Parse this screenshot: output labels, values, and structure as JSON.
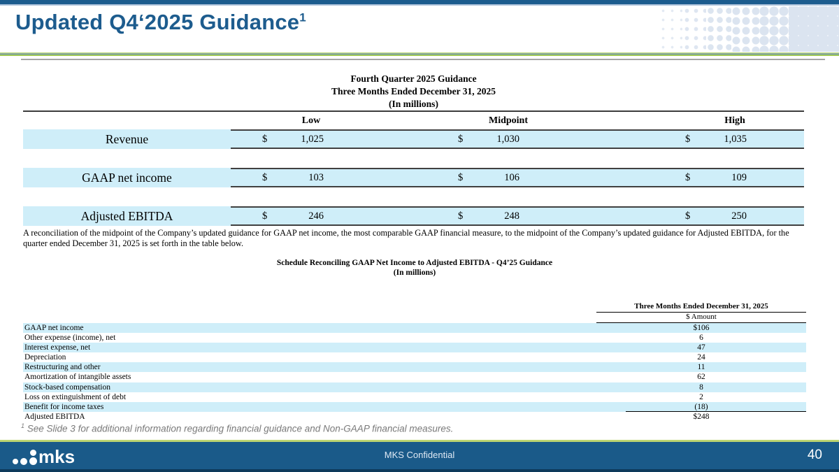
{
  "slide": {
    "title": "Updated Q4‘2025 Guidance",
    "title_superscript": "1",
    "footer_text": "MKS Confidential",
    "page_number": "40",
    "logo_text": "mks"
  },
  "colors": {
    "header_blue": "#1d5c8e",
    "footer_blue": "#1a5a89",
    "row_highlight_blue": "#cfeef9",
    "accent_green": "#a0c852"
  },
  "guidance_table": {
    "title_line1": "Fourth Quarter 2025 Guidance",
    "title_line2": "Three Months Ended December 31, 2025",
    "title_line3": "(In millions)",
    "currency_symbol": "$",
    "columns": [
      "Low",
      "Midpoint",
      "High"
    ],
    "rows": [
      {
        "label": "Revenue",
        "low": "1,025",
        "midpoint": "1,030",
        "high": "1,035"
      },
      {
        "label": "GAAP net income",
        "low": "103",
        "midpoint": "106",
        "high": "109"
      },
      {
        "label": "Adjusted EBITDA",
        "low": "246",
        "midpoint": "248",
        "high": "250"
      }
    ]
  },
  "reconciliation_note": "A reconciliation of the midpoint of the Company’s updated guidance for GAAP net income, the most comparable GAAP financial measure, to the midpoint of the Company’s updated guidance for Adjusted EBITDA, for the quarter ended December 31, 2025 is set forth in the table below.",
  "reconciliation_table": {
    "title_line1": "Schedule Reconciling GAAP Net Income to Adjusted EBITDA - Q4’25 Guidance",
    "title_line2": "(In millions)",
    "column_header": "Three Months Ended December 31, 2025",
    "subheader": "$ Amount",
    "rows": [
      {
        "label": "GAAP net income",
        "value": "$106"
      },
      {
        "label": "Other expense (income), net",
        "value": "6"
      },
      {
        "label": "Interest expense, net",
        "value": "47"
      },
      {
        "label": "Depreciation",
        "value": "24"
      },
      {
        "label": "Restructuring and other",
        "value": "11"
      },
      {
        "label": "Amortization of intangible assets",
        "value": "62"
      },
      {
        "label": "Stock-based compensation",
        "value": "8"
      },
      {
        "label": "Loss on extinguishment of debt",
        "value": "2"
      },
      {
        "label": "Benefit for income taxes",
        "value": "(18)"
      },
      {
        "label": "Adjusted EBITDA",
        "value": "$248"
      }
    ]
  },
  "footnote": {
    "marker": "1",
    "text": " See Slide 3 for additional information regarding financial guidance and Non-GAAP financial measures."
  }
}
